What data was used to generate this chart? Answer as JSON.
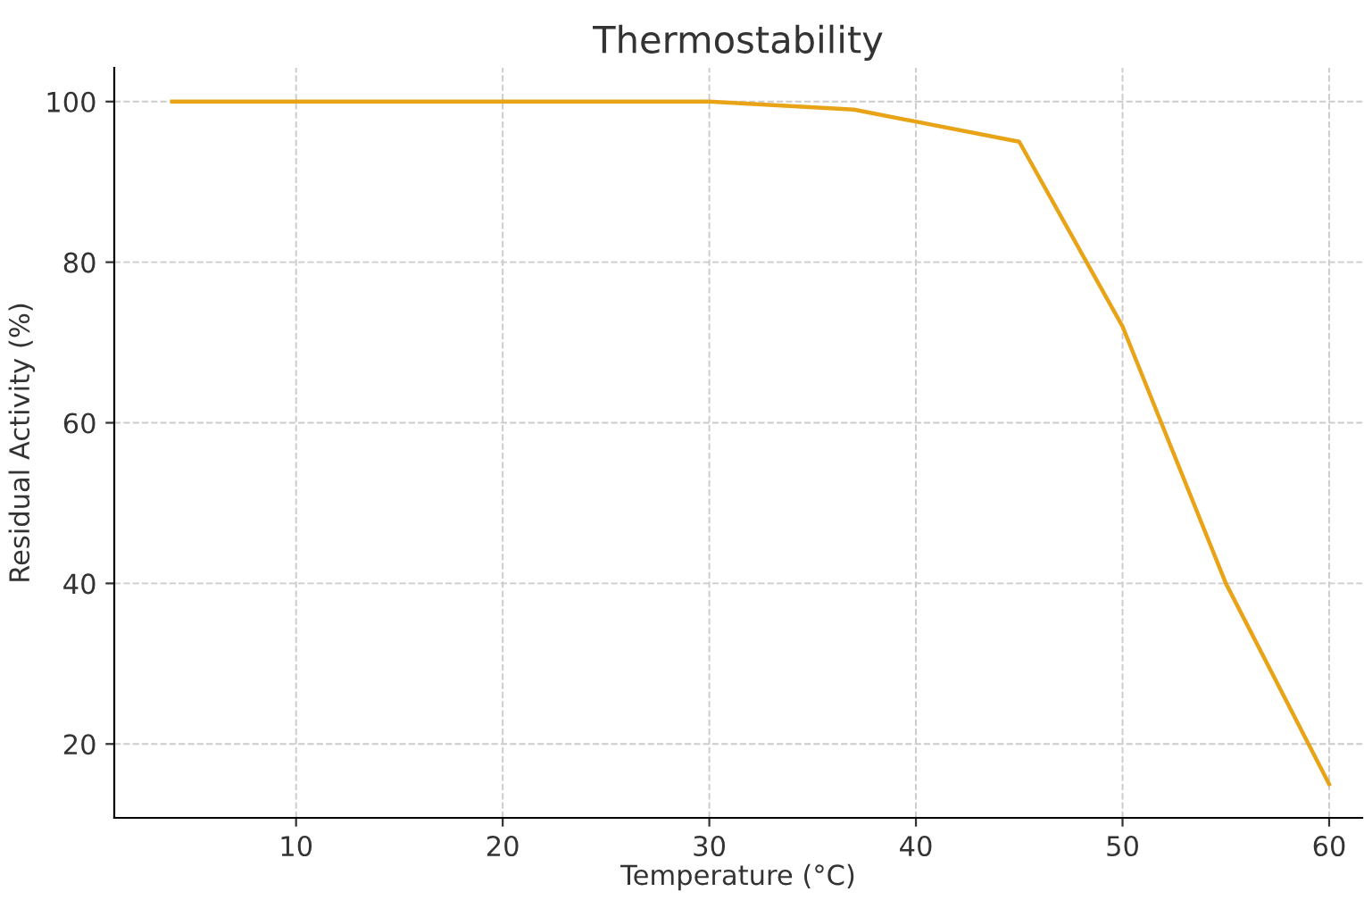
{
  "chart_data": {
    "type": "line",
    "title": "Thermostability",
    "xlabel": "Temperature (°C)",
    "ylabel": "Residual Activity (%)",
    "x": [
      4,
      30,
      37,
      45,
      50,
      55,
      60
    ],
    "series": [
      {
        "color": "#e8a317",
        "values": [
          100,
          100,
          99,
          95,
          72,
          40,
          15
        ]
      }
    ],
    "xlim": [
      1.2,
      61.6
    ],
    "ylim": [
      10.8,
      104.2
    ],
    "xticks": [
      10,
      20,
      30,
      40,
      50,
      60
    ],
    "yticks": [
      20,
      40,
      60,
      80,
      100
    ],
    "grid": true,
    "line_style": "solid",
    "marker": "none"
  }
}
